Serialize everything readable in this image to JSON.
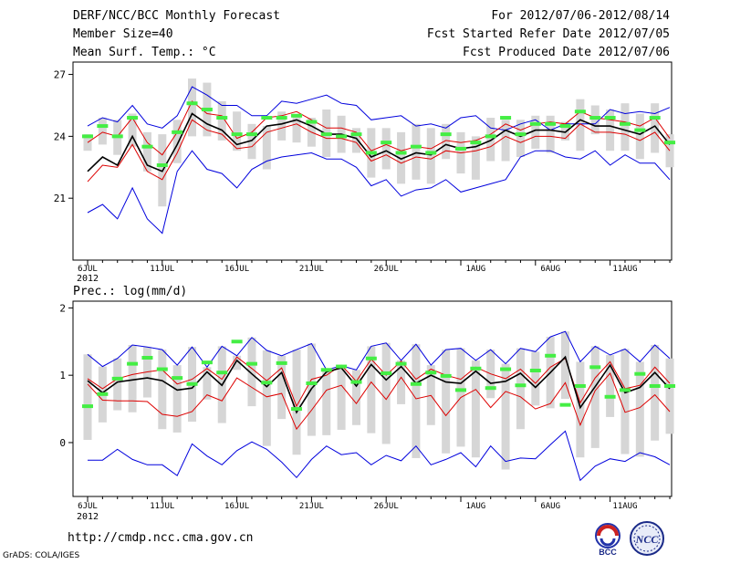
{
  "header": {
    "title": "DERF/NCC/BCC Monthly Forecast",
    "member_size": "Member Size=40",
    "variable": "Mean Surf. Temp.: °C",
    "forecast_range": "For 2012/07/06-2012/08/14",
    "started_refer": "Fcst Started Refer Date 2012/07/05",
    "produced_date": "Fcst Produced Date 2012/07/06"
  },
  "footer": {
    "url": "http://cmdp.ncc.cma.gov.cn",
    "grads_credit": "GrADS: COLA/IGES",
    "logo_bcc": "BCC",
    "logo_ncc": "NCC"
  },
  "colors": {
    "mean": "#000000",
    "spread": "#d6d6d6",
    "bound": "#0000dd",
    "percentile": "#dd0000",
    "median": "#44ee44"
  },
  "chart_data": [
    {
      "type": "line",
      "title": "Mean Surf. Temp.: °C",
      "xlabel": "",
      "ylabel": "",
      "x_tick_labels": [
        "6JUL",
        "11JUL",
        "16JUL",
        "21JUL",
        "26JUL",
        "1AUG",
        "6AUG",
        "11AUG"
      ],
      "year_label": "2012",
      "y_ticks": [
        "21",
        "24",
        "27"
      ],
      "ylim": [
        18.0,
        27.6
      ],
      "num_days": 40,
      "series": [
        {
          "name": "ensemble max",
          "color": "blue",
          "values": [
            24.5,
            24.9,
            24.7,
            25.5,
            24.6,
            24.4,
            25.0,
            26.4,
            26.0,
            25.5,
            25.5,
            25.0,
            25.0,
            25.7,
            25.6,
            25.8,
            26.0,
            25.6,
            25.5,
            24.8,
            24.9,
            25.0,
            24.5,
            24.6,
            24.4,
            24.9,
            25.0,
            24.4,
            24.3,
            24.6,
            24.8,
            24.3,
            24.6,
            24.6,
            24.6,
            25.3,
            25.1,
            25.2,
            25.1,
            25.4
          ]
        },
        {
          "name": "ensemble min",
          "color": "blue",
          "values": [
            20.3,
            20.7,
            20.0,
            21.5,
            20.0,
            19.3,
            22.3,
            23.3,
            22.4,
            22.2,
            21.5,
            22.4,
            22.8,
            23.0,
            23.1,
            23.2,
            22.9,
            22.9,
            22.5,
            21.6,
            21.9,
            21.1,
            21.4,
            21.5,
            21.9,
            21.3,
            21.5,
            21.7,
            21.9,
            23.0,
            23.3,
            23.3,
            23.0,
            22.9,
            23.3,
            22.6,
            23.1,
            22.7,
            22.7,
            21.9
          ]
        },
        {
          "name": "upper percentile",
          "color": "red",
          "values": [
            23.7,
            24.2,
            24.0,
            24.9,
            23.7,
            23.1,
            24.2,
            25.7,
            25.1,
            25.0,
            23.9,
            24.2,
            24.9,
            25.0,
            25.2,
            24.8,
            24.4,
            24.4,
            24.2,
            23.3,
            23.6,
            23.3,
            23.5,
            23.4,
            23.8,
            23.7,
            23.8,
            24.1,
            24.6,
            24.3,
            24.6,
            24.7,
            24.6,
            25.2,
            24.9,
            24.8,
            24.7,
            24.5,
            24.9,
            23.9
          ]
        },
        {
          "name": "lower percentile",
          "color": "red",
          "values": [
            21.8,
            22.6,
            22.5,
            23.6,
            22.3,
            21.9,
            23.2,
            24.8,
            24.3,
            24.1,
            23.4,
            23.5,
            24.2,
            24.4,
            24.6,
            24.2,
            23.9,
            23.9,
            23.7,
            22.8,
            23.1,
            22.7,
            23.0,
            22.9,
            23.3,
            23.2,
            23.3,
            23.5,
            24.0,
            23.7,
            24.0,
            24.0,
            23.9,
            24.6,
            24.2,
            24.2,
            24.1,
            23.8,
            24.2,
            23.3
          ]
        },
        {
          "name": "ensemble mean",
          "color": "black",
          "values": [
            22.3,
            23.0,
            22.6,
            24.0,
            22.6,
            22.3,
            23.6,
            25.1,
            24.6,
            24.3,
            23.6,
            23.8,
            24.5,
            24.6,
            24.8,
            24.5,
            24.1,
            24.1,
            23.9,
            23.0,
            23.3,
            22.9,
            23.2,
            23.1,
            23.6,
            23.4,
            23.5,
            23.8,
            24.3,
            24.0,
            24.3,
            24.3,
            24.2,
            24.8,
            24.5,
            24.5,
            24.3,
            24.1,
            24.5,
            23.6
          ]
        }
      ],
      "spread_bars": {
        "low": [
          23.3,
          23.6,
          23.1,
          23.5,
          22.3,
          20.6,
          22.7,
          24.0,
          24.0,
          23.8,
          23.3,
          22.9,
          22.4,
          23.8,
          23.7,
          23.5,
          23.0,
          23.2,
          23.2,
          22.0,
          22.4,
          21.7,
          21.9,
          21.7,
          22.9,
          22.2,
          21.9,
          22.8,
          22.8,
          23.0,
          23.4,
          23.2,
          23.8,
          23.3,
          24.1,
          23.3,
          23.3,
          22.9,
          23.2,
          22.5
        ],
        "high": [
          24.1,
          24.9,
          24.8,
          25.1,
          24.2,
          24.1,
          24.8,
          26.8,
          26.6,
          25.7,
          25.2,
          24.6,
          24.5,
          25.2,
          25.0,
          24.9,
          25.3,
          25.0,
          24.4,
          24.4,
          24.4,
          24.2,
          24.6,
          24.4,
          24.6,
          24.2,
          24.0,
          24.9,
          24.8,
          24.8,
          25.0,
          25.0,
          24.7,
          25.8,
          25.5,
          25.3,
          25.6,
          25.1,
          25.6,
          24.1
        ]
      },
      "median": [
        24.0,
        24.5,
        24.0,
        24.9,
        23.5,
        22.6,
        24.2,
        25.6,
        25.3,
        24.9,
        24.1,
        24.1,
        24.9,
        24.9,
        25.0,
        24.7,
        24.1,
        24.0,
        24.1,
        23.2,
        23.7,
        23.2,
        23.5,
        23.2,
        24.1,
        23.4,
        23.7,
        24.0,
        24.9,
        24.1,
        24.6,
        24.6,
        24.5,
        25.2,
        24.9,
        24.9,
        24.6,
        24.3,
        24.9,
        23.7
      ]
    },
    {
      "type": "line",
      "title": "Prec.: log(mm/d)",
      "xlabel": "",
      "ylabel": "",
      "x_tick_labels": [
        "6JUL",
        "11JUL",
        "16JUL",
        "21JUL",
        "26JUL",
        "1AUG",
        "6AUG",
        "11AUG"
      ],
      "year_label": "2012",
      "y_ticks": [
        "0",
        "1",
        "2"
      ],
      "ylim": [
        -0.8,
        2.1
      ],
      "num_days": 40,
      "series": [
        {
          "name": "ensemble max",
          "color": "blue",
          "values": [
            1.31,
            1.13,
            1.25,
            1.45,
            1.42,
            1.38,
            1.15,
            1.42,
            1.12,
            1.43,
            1.29,
            1.56,
            1.37,
            1.29,
            1.38,
            1.47,
            1.08,
            1.14,
            1.08,
            1.43,
            1.48,
            1.22,
            1.46,
            1.15,
            1.38,
            1.4,
            1.22,
            1.38,
            1.17,
            1.4,
            1.35,
            1.57,
            1.65,
            1.2,
            1.43,
            1.3,
            1.39,
            1.2,
            1.45,
            1.25
          ]
        },
        {
          "name": "ensemble min",
          "color": "blue",
          "values": [
            -0.26,
            -0.26,
            -0.1,
            -0.25,
            -0.33,
            -0.33,
            -0.49,
            -0.02,
            -0.2,
            -0.33,
            -0.12,
            0.01,
            -0.1,
            -0.29,
            -0.52,
            -0.25,
            -0.05,
            -0.18,
            -0.15,
            -0.33,
            -0.19,
            -0.27,
            -0.05,
            -0.33,
            -0.25,
            -0.15,
            -0.36,
            -0.05,
            -0.28,
            -0.23,
            -0.24,
            -0.03,
            0.17,
            -0.56,
            -0.35,
            -0.24,
            -0.28,
            -0.15,
            -0.21,
            -0.33
          ]
        },
        {
          "name": "upper percentile",
          "color": "red",
          "values": [
            0.95,
            0.8,
            0.95,
            1.01,
            1.05,
            1.08,
            0.87,
            0.94,
            1.1,
            0.94,
            1.27,
            1.1,
            0.92,
            1.11,
            0.54,
            0.94,
            1.0,
            1.15,
            0.91,
            1.24,
            1.0,
            1.21,
            0.94,
            1.09,
            1.0,
            0.94,
            1.12,
            1.02,
            0.95,
            1.09,
            0.88,
            1.12,
            1.25,
            0.59,
            0.96,
            1.2,
            0.8,
            0.85,
            1.12,
            0.88
          ]
        },
        {
          "name": "lower percentile",
          "color": "red",
          "values": [
            0.87,
            0.63,
            0.62,
            0.62,
            0.61,
            0.42,
            0.39,
            0.46,
            0.71,
            0.62,
            0.96,
            0.82,
            0.68,
            0.73,
            0.2,
            0.48,
            0.78,
            0.85,
            0.58,
            0.9,
            0.64,
            0.97,
            0.65,
            0.7,
            0.4,
            0.67,
            0.79,
            0.52,
            0.76,
            0.68,
            0.5,
            0.58,
            0.89,
            0.26,
            0.77,
            1.03,
            0.45,
            0.52,
            0.71,
            0.46
          ]
        },
        {
          "name": "ensemble mean",
          "color": "black",
          "values": [
            0.92,
            0.74,
            0.9,
            0.93,
            0.96,
            0.92,
            0.78,
            0.81,
            1.05,
            0.85,
            1.22,
            1.02,
            0.83,
            1.04,
            0.45,
            0.8,
            1.05,
            1.11,
            0.84,
            1.16,
            0.93,
            1.13,
            0.88,
            1.0,
            0.9,
            0.88,
            1.06,
            0.88,
            0.91,
            1.03,
            0.82,
            1.04,
            1.27,
            0.52,
            0.83,
            1.15,
            0.74,
            0.82,
            1.04,
            0.8
          ]
        }
      ],
      "spread_bars": {
        "low": [
          0.04,
          0.3,
          0.48,
          0.45,
          0.67,
          0.2,
          0.15,
          0.31,
          0.64,
          0.29,
          1.08,
          0.54,
          -0.05,
          0.35,
          -0.18,
          0.1,
          0.11,
          0.19,
          0.26,
          0.14,
          -0.02,
          0.57,
          -0.23,
          0.26,
          -0.16,
          -0.06,
          -0.22,
          0.66,
          -0.4,
          0.2,
          0.55,
          0.51,
          0.65,
          -0.22,
          -0.08,
          0.38,
          -0.17,
          -0.21,
          0.03,
          0.13
        ]
      },
      "median": [
        0.54,
        0.72,
        0.95,
        1.17,
        1.26,
        1.09,
        0.96,
        0.87,
        1.19,
        1.04,
        1.5,
        1.17,
        0.89,
        1.18,
        0.5,
        0.88,
        1.08,
        1.13,
        0.9,
        1.25,
        1.03,
        1.17,
        0.87,
        1.04,
        0.99,
        0.78,
        1.1,
        0.81,
        1.09,
        0.85,
        1.07,
        1.29,
        0.56,
        0.84,
        1.12,
        0.68,
        0.78,
        1.02,
        0.84,
        0.84
      ]
    }
  ]
}
